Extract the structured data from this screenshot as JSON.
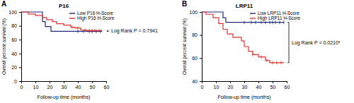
{
  "chart_data": [
    {
      "type": "line",
      "panel": "A",
      "title": "P16",
      "x_label": "Follow-up time (months)",
      "y_label": "Overall percent survival (%)",
      "xlim": [
        0,
        60
      ],
      "xticks": [
        0,
        10,
        20,
        30,
        40,
        50,
        60
      ],
      "ylim": [
        0,
        100
      ],
      "yticks": [
        0,
        20,
        40,
        60,
        80,
        100
      ],
      "legend": "upper right",
      "line_style": "step",
      "marker": "tick",
      "annotation": "Log Rank P = 0.7941",
      "series": [
        {
          "name": "Low P16 H-Score",
          "color": "#1f2a78",
          "x": [
            0,
            15,
            17,
            21,
            57
          ],
          "values": [
            100,
            86,
            79,
            72,
            72
          ],
          "censored_x": [
            40,
            44,
            48,
            50,
            53,
            56
          ],
          "censored_values": [
            72,
            72,
            72,
            72,
            72,
            72
          ]
        },
        {
          "name": "High P16 H-Score",
          "color": "#e0342f",
          "x": [
            0,
            5,
            10,
            15,
            18,
            22,
            25,
            30,
            35,
            38,
            42,
            46,
            57
          ],
          "values": [
            100,
            97,
            95,
            92,
            89,
            86,
            83,
            81,
            78,
            77,
            74,
            73,
            73
          ],
          "censored_x": [
            36,
            40,
            45,
            48,
            50,
            52,
            55
          ],
          "censored_values": [
            78,
            77,
            74,
            73,
            73,
            73,
            73
          ]
        }
      ]
    },
    {
      "type": "line",
      "panel": "B",
      "title": "LRP11",
      "x_label": "Follow-up time (months)",
      "y_label": "Overall percent survival (%)",
      "xlim": [
        0,
        60
      ],
      "xticks": [
        0,
        10,
        20,
        30,
        40,
        50,
        60
      ],
      "ylim": [
        40,
        100
      ],
      "yticks": [
        40,
        60,
        80,
        100
      ],
      "legend": "upper right",
      "line_style": "step",
      "marker": "tick",
      "annotation": "Log Rank P = 0.0210*",
      "series": [
        {
          "name": "Low LRP11 H-Score",
          "color": "#1f2a78",
          "x": [
            0,
            15,
            17,
            58
          ],
          "values": [
            100,
            95,
            91,
            91
          ],
          "censored_x": [
            30,
            35,
            38,
            42,
            45,
            48,
            50,
            52,
            55,
            58
          ],
          "censored_values": [
            91,
            91,
            91,
            91,
            91,
            91,
            91,
            91,
            91,
            91
          ]
        },
        {
          "name": "High LRP11 H-Score",
          "color": "#e0342f",
          "x": [
            0,
            3,
            8,
            12,
            15,
            18,
            22,
            28,
            30,
            33,
            36,
            40,
            45,
            48,
            58
          ],
          "values": [
            100,
            98,
            95,
            90,
            85,
            81,
            78,
            75,
            70,
            66,
            63,
            61,
            58,
            56,
            56
          ],
          "censored_x": [
            36,
            42,
            46,
            50,
            53,
            56
          ],
          "censored_values": [
            63,
            61,
            58,
            56,
            56,
            56
          ]
        }
      ]
    }
  ]
}
